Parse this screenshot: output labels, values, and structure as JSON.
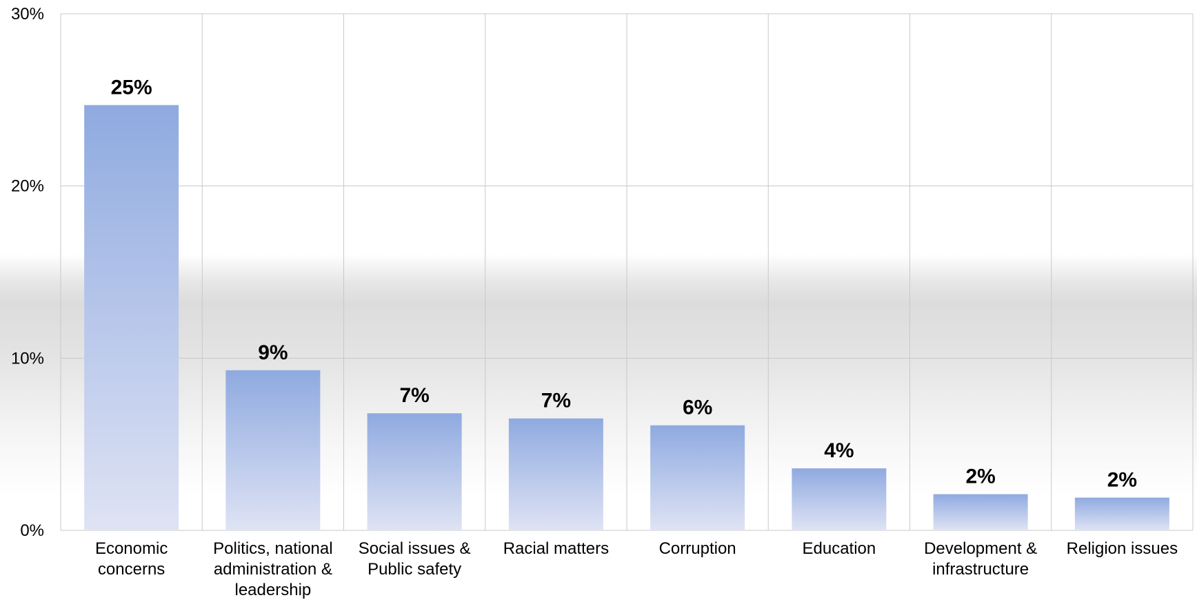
{
  "chart_data": {
    "type": "bar",
    "categories": [
      [
        "Economic",
        "concerns"
      ],
      [
        "Politics, national",
        "administration &",
        "leadership"
      ],
      [
        "Social issues &",
        "Public safety"
      ],
      [
        "Racial matters"
      ],
      [
        "Corruption"
      ],
      [
        "Education"
      ],
      [
        "Development &",
        "infrastructure"
      ],
      [
        "Religion issues"
      ]
    ],
    "values": [
      24.7,
      9.3,
      6.8,
      6.5,
      6.1,
      3.6,
      2.1,
      1.9
    ],
    "data_labels": [
      "25%",
      "9%",
      "7%",
      "7%",
      "6%",
      "4%",
      "2%",
      "2%"
    ],
    "title": "",
    "xlabel": "",
    "ylabel": "",
    "ylim": [
      0,
      30
    ],
    "yticks": [
      0,
      10,
      20,
      30
    ],
    "ytick_labels": [
      "0%",
      "10%",
      "20%",
      "30%"
    ],
    "grid": true,
    "bar_color_top": "#8faae0",
    "bar_color_bottom": "#dfe3f4",
    "gridline_color": "#c8c8c8"
  }
}
